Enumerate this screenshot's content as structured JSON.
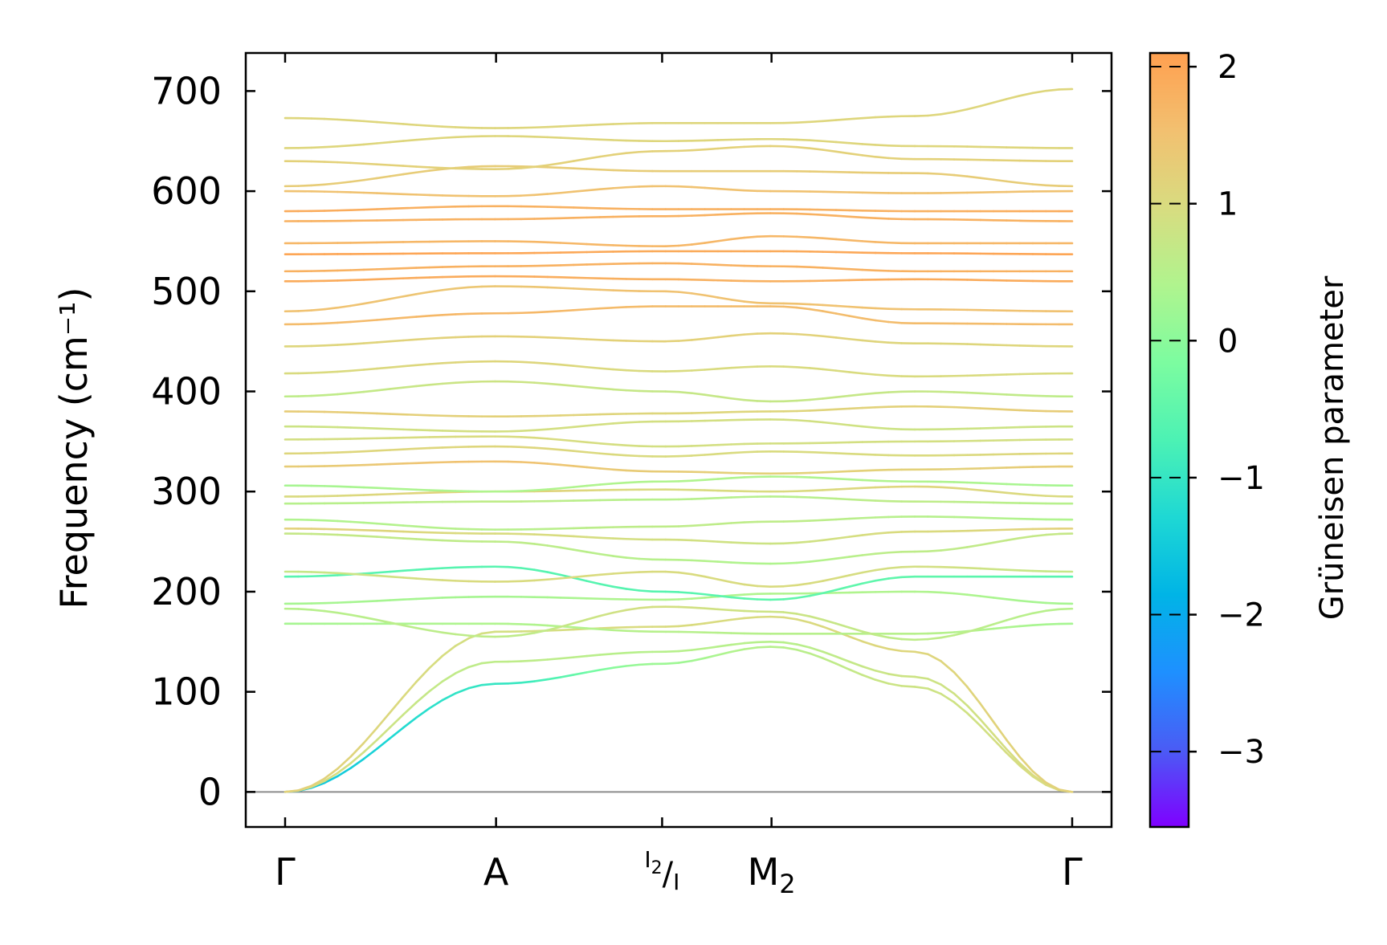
{
  "chart_data": {
    "type": "line",
    "title": "",
    "xlabel": "",
    "ylabel": "Frequency (cm⁻¹)",
    "ylim": [
      -35,
      738
    ],
    "yticks": [
      0,
      100,
      200,
      300,
      400,
      500,
      600,
      700
    ],
    "high_symmetry_points": [
      {
        "label": "Γ",
        "sub": "",
        "x": 0.0
      },
      {
        "label": "A",
        "sub": "",
        "x": 0.268
      },
      {
        "label": "I",
        "sub": "2",
        "label2": "I",
        "x": 0.479
      },
      {
        "label": "M",
        "sub": "2",
        "x": 0.618
      },
      {
        "label": "Γ",
        "sub": "",
        "x": 1.0
      }
    ],
    "xlim": [
      -0.05,
      1.05
    ],
    "zero_line": true,
    "colorbar": {
      "label": "Grüneisen parameter",
      "range": [
        -3.55,
        2.1
      ],
      "ticks": [
        2,
        1,
        0,
        -1,
        -2,
        -3
      ],
      "tick_labels": [
        "2",
        "1",
        "0",
        "−1",
        "−2",
        "−3"
      ],
      "colormap": [
        "#7f00ff",
        "#4a5cf5",
        "#1e90ff",
        "#00b4e6",
        "#1ed8d4",
        "#4cf2b4",
        "#7cfca0",
        "#b0f48e",
        "#d8dc80",
        "#f2c070",
        "#ffa050"
      ]
    },
    "x": [
      0.0,
      0.268,
      0.479,
      0.618,
      0.8,
      1.0
    ],
    "series": [
      {
        "values": [
          0,
          108,
          128,
          145,
          105,
          0
        ],
        "gamma": [
          -1.6,
          -1.0,
          0.2,
          0.5,
          0.8,
          1.0
        ]
      },
      {
        "values": [
          0,
          130,
          140,
          150,
          115,
          0
        ],
        "gamma": [
          1.0,
          0.6,
          0.5,
          0.5,
          0.8,
          1.0
        ]
      },
      {
        "values": [
          0,
          160,
          165,
          175,
          140,
          0
        ],
        "gamma": [
          1.2,
          0.9,
          1.0,
          1.0,
          1.1,
          1.2
        ]
      },
      {
        "values": [
          168,
          168,
          160,
          158,
          158,
          168
        ],
        "gamma": [
          0.3,
          0.4,
          0.5,
          0.5,
          0.5,
          0.3
        ]
      },
      {
        "values": [
          183,
          155,
          185,
          180,
          152,
          183
        ],
        "gamma": [
          0.5,
          0.6,
          0.9,
          0.8,
          0.6,
          0.5
        ]
      },
      {
        "values": [
          188,
          195,
          192,
          198,
          200,
          188
        ],
        "gamma": [
          0.3,
          0.3,
          0.4,
          0.4,
          0.4,
          0.3
        ]
      },
      {
        "values": [
          215,
          225,
          200,
          192,
          215,
          215
        ],
        "gamma": [
          -0.6,
          -0.6,
          -0.6,
          -0.5,
          -0.5,
          -0.6
        ]
      },
      {
        "values": [
          220,
          210,
          220,
          205,
          225,
          220
        ],
        "gamma": [
          0.7,
          1.0,
          1.0,
          1.0,
          0.9,
          0.7
        ]
      },
      {
        "values": [
          258,
          250,
          232,
          228,
          240,
          258
        ],
        "gamma": [
          0.7,
          0.6,
          0.5,
          0.4,
          0.6,
          0.7
        ]
      },
      {
        "values": [
          263,
          258,
          252,
          248,
          260,
          263
        ],
        "gamma": [
          1.2,
          1.0,
          0.9,
          0.8,
          1.0,
          1.2
        ]
      },
      {
        "values": [
          272,
          262,
          265,
          270,
          275,
          272
        ],
        "gamma": [
          0.4,
          0.5,
          0.6,
          0.6,
          0.5,
          0.4
        ]
      },
      {
        "values": [
          288,
          290,
          292,
          295,
          290,
          288
        ],
        "gamma": [
          0.5,
          0.6,
          0.5,
          0.5,
          0.6,
          0.5
        ]
      },
      {
        "values": [
          295,
          300,
          302,
          300,
          305,
          295
        ],
        "gamma": [
          1.0,
          1.2,
          1.0,
          1.0,
          1.1,
          1.0
        ]
      },
      {
        "values": [
          306,
          300,
          310,
          315,
          310,
          306
        ],
        "gamma": [
          0.3,
          0.4,
          0.4,
          0.4,
          0.4,
          0.3
        ]
      },
      {
        "values": [
          325,
          330,
          320,
          318,
          322,
          325
        ],
        "gamma": [
          1.3,
          1.5,
          1.3,
          1.2,
          1.2,
          1.3
        ]
      },
      {
        "values": [
          338,
          345,
          335,
          340,
          336,
          338
        ],
        "gamma": [
          1.1,
          1.1,
          1.0,
          1.0,
          1.0,
          1.1
        ]
      },
      {
        "values": [
          352,
          355,
          345,
          348,
          350,
          352
        ],
        "gamma": [
          0.9,
          1.0,
          0.9,
          0.9,
          0.9,
          0.9
        ]
      },
      {
        "values": [
          365,
          360,
          370,
          372,
          362,
          365
        ],
        "gamma": [
          0.8,
          0.9,
          0.9,
          0.9,
          0.8,
          0.8
        ]
      },
      {
        "values": [
          380,
          375,
          378,
          380,
          385,
          380
        ],
        "gamma": [
          1.3,
          1.2,
          1.1,
          1.1,
          1.2,
          1.3
        ]
      },
      {
        "values": [
          395,
          410,
          400,
          390,
          400,
          395
        ],
        "gamma": [
          0.6,
          0.8,
          0.7,
          0.7,
          0.7,
          0.6
        ]
      },
      {
        "values": [
          418,
          430,
          420,
          425,
          415,
          418
        ],
        "gamma": [
          1.0,
          1.1,
          1.0,
          1.0,
          1.0,
          1.0
        ]
      },
      {
        "values": [
          445,
          455,
          450,
          458,
          448,
          445
        ],
        "gamma": [
          1.1,
          1.2,
          1.2,
          1.2,
          1.1,
          1.1
        ]
      },
      {
        "values": [
          467,
          478,
          485,
          485,
          468,
          467
        ],
        "gamma": [
          1.6,
          1.7,
          1.6,
          1.6,
          1.6,
          1.6
        ]
      },
      {
        "values": [
          480,
          505,
          500,
          488,
          482,
          480
        ],
        "gamma": [
          1.5,
          1.4,
          1.5,
          1.5,
          1.5,
          1.5
        ]
      },
      {
        "values": [
          510,
          515,
          512,
          510,
          512,
          510
        ],
        "gamma": [
          1.9,
          1.9,
          1.8,
          1.8,
          1.9,
          1.9
        ]
      },
      {
        "values": [
          520,
          525,
          528,
          525,
          520,
          520
        ],
        "gamma": [
          1.8,
          1.8,
          1.8,
          1.8,
          1.8,
          1.8
        ]
      },
      {
        "values": [
          537,
          538,
          540,
          540,
          538,
          537
        ],
        "gamma": [
          2.0,
          2.0,
          1.9,
          1.9,
          2.0,
          2.0
        ]
      },
      {
        "values": [
          548,
          550,
          545,
          555,
          548,
          548
        ],
        "gamma": [
          1.7,
          1.7,
          1.7,
          1.7,
          1.7,
          1.7
        ]
      },
      {
        "values": [
          570,
          572,
          575,
          578,
          572,
          570
        ],
        "gamma": [
          1.8,
          1.8,
          1.8,
          1.8,
          1.8,
          1.8
        ]
      },
      {
        "values": [
          580,
          585,
          582,
          582,
          580,
          580
        ],
        "gamma": [
          1.9,
          1.8,
          1.8,
          1.8,
          1.8,
          1.9
        ]
      },
      {
        "values": [
          600,
          595,
          605,
          600,
          598,
          600
        ],
        "gamma": [
          1.5,
          1.5,
          1.5,
          1.5,
          1.5,
          1.5
        ]
      },
      {
        "values": [
          605,
          625,
          620,
          620,
          618,
          605
        ],
        "gamma": [
          1.3,
          1.3,
          1.3,
          1.3,
          1.3,
          1.3
        ]
      },
      {
        "values": [
          630,
          622,
          640,
          645,
          632,
          630
        ],
        "gamma": [
          1.2,
          1.2,
          1.2,
          1.2,
          1.2,
          1.2
        ]
      },
      {
        "values": [
          643,
          655,
          650,
          652,
          645,
          643
        ],
        "gamma": [
          1.1,
          1.1,
          1.1,
          1.1,
          1.1,
          1.1
        ]
      },
      {
        "values": [
          673,
          663,
          668,
          668,
          675,
          702
        ],
        "gamma": [
          1.1,
          1.1,
          1.1,
          1.1,
          1.1,
          1.1
        ]
      }
    ]
  }
}
